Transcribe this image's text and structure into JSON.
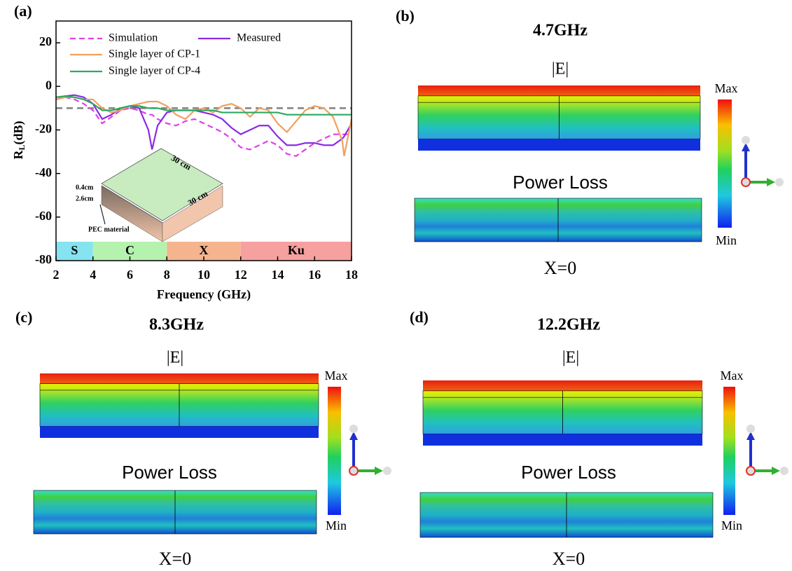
{
  "chart_data": {
    "type": "line",
    "panel_label": "(a)",
    "xlabel": "Frequency (GHz)",
    "ylabel": {
      "main": "R",
      "sub": "L",
      "unit": "(dB)"
    },
    "xlim": [
      2,
      18
    ],
    "ylim": [
      -80,
      30
    ],
    "xticks": [
      2,
      4,
      6,
      8,
      10,
      12,
      14,
      16,
      18
    ],
    "yticks": [
      -80,
      -60,
      -40,
      -20,
      0,
      20
    ],
    "reference_line": -10,
    "x": [
      2,
      2.5,
      3,
      3.5,
      4,
      4.5,
      5,
      5.5,
      6,
      6.5,
      7,
      7.2,
      7.5,
      8,
      8.5,
      9,
      9.5,
      10,
      10.5,
      11,
      11.5,
      12,
      12.5,
      13,
      13.5,
      14,
      14.5,
      15,
      15.5,
      16,
      16.5,
      17,
      17.5,
      17.6,
      18
    ],
    "series": [
      {
        "name": "Simulation",
        "color": "#e040e8",
        "dashed": true,
        "values": [
          -6,
          -5,
          -6,
          -8,
          -11,
          -17,
          -14,
          -11,
          -10,
          -11,
          -13,
          -13,
          -15,
          -17,
          -18,
          -16,
          -15,
          -17,
          -19,
          -21,
          -24,
          -28,
          -29,
          -27,
          -25,
          -27,
          -31,
          -32,
          -29,
          -26,
          -24,
          -22,
          -22,
          -22,
          -22
        ]
      },
      {
        "name": "Measured",
        "color": "#8a2be2",
        "dashed": false,
        "values": [
          -5,
          -4.5,
          -4,
          -5,
          -8,
          -15,
          -13,
          -10,
          -9,
          -10,
          -20,
          -29,
          -18,
          -12,
          -11,
          -11,
          -11,
          -12,
          -13,
          -15,
          -19,
          -22,
          -20,
          -18,
          -18,
          -23,
          -27,
          -27,
          -26,
          -26,
          -27,
          -27,
          -24,
          -23,
          -17
        ]
      },
      {
        "name": "Single layer of CP-1",
        "color": "#f0a060",
        "dashed": false,
        "values": [
          -6,
          -5,
          -5,
          -6,
          -6,
          -10,
          -12,
          -11,
          -9,
          -8,
          -7,
          -7,
          -7,
          -9,
          -13,
          -15,
          -11,
          -10,
          -12,
          -9,
          -8,
          -10,
          -14,
          -10,
          -11,
          -17,
          -21,
          -16,
          -11,
          -9,
          -10,
          -14,
          -25,
          -32,
          -15
        ]
      },
      {
        "name": "Single layer of CP-4",
        "color": "#2ea860",
        "dashed": false,
        "values": [
          -5,
          -4.5,
          -5,
          -6,
          -8,
          -11,
          -11,
          -10,
          -9,
          -9,
          -10,
          -10,
          -10,
          -11,
          -11,
          -11,
          -11,
          -11,
          -11,
          -12,
          -12,
          -12,
          -12,
          -12,
          -12,
          -12,
          -13,
          -13,
          -13,
          -13,
          -13,
          -13,
          -13,
          -13,
          -13
        ]
      }
    ],
    "bands": [
      {
        "label": "S",
        "from": 2,
        "to": 4,
        "color": "#86e3f0"
      },
      {
        "label": "C",
        "from": 4,
        "to": 8,
        "color": "#b4f2ae"
      },
      {
        "label": "X",
        "from": 8,
        "to": 12,
        "color": "#f5b48e"
      },
      {
        "label": "Ku",
        "from": 12,
        "to": 18,
        "color": "#f6a0a0"
      }
    ],
    "inset": {
      "width": "30 cm",
      "length": "30 cm",
      "top_thickness": "0.4cm",
      "bottom_thickness": "2.6cm",
      "pec": "PEC material"
    }
  },
  "panels": [
    {
      "label": "(b)",
      "frequency": "4.7GHz",
      "e_label": "|E|",
      "loss_label": "Power Loss",
      "section": "X=0",
      "max": "Max",
      "min": "Min"
    },
    {
      "label": "(c)",
      "frequency": "8.3GHz",
      "e_label": "|E|",
      "loss_label": "Power Loss",
      "section": "X=0",
      "max": "Max",
      "min": "Min"
    },
    {
      "label": "(d)",
      "frequency": "12.2GHz",
      "e_label": "|E|",
      "loss_label": "Power Loss",
      "section": "X=0",
      "max": "Max",
      "min": "Min"
    }
  ]
}
